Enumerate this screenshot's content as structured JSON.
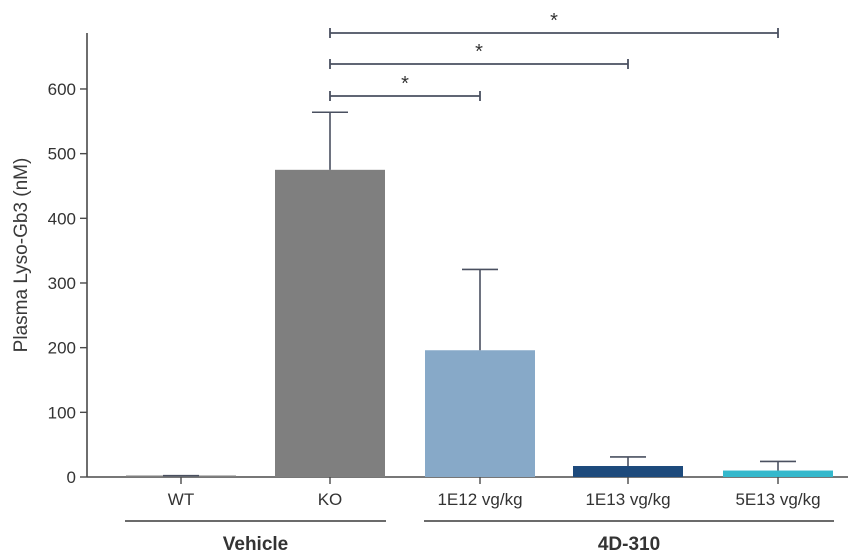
{
  "chart_data": {
    "type": "bar",
    "title": "",
    "xlabel": "",
    "ylabel": "Plasma Lyso-Gb3 (nM)",
    "ylim": [
      0,
      650
    ],
    "yticks": [
      0,
      100,
      200,
      300,
      400,
      500,
      600
    ],
    "categories": [
      "WT",
      "KO",
      "1E12 vg/kg",
      "1E13 vg/kg",
      "5E13 vg/kg"
    ],
    "values": [
      1,
      475,
      196,
      17,
      10
    ],
    "errors": [
      1,
      89,
      125,
      14,
      14
    ],
    "colors": [
      "#7f7f7f",
      "#7f7f7f",
      "#87a9c8",
      "#1d4a7c",
      "#35b8cc"
    ],
    "groups": [
      {
        "label": "Vehicle",
        "categories": [
          "WT",
          "KO"
        ]
      },
      {
        "label": "4D-310",
        "categories": [
          "1E12 vg/kg",
          "1E13 vg/kg",
          "5E13 vg/kg"
        ]
      }
    ],
    "significance": [
      {
        "from": "KO",
        "to": "1E12 vg/kg",
        "label": "*"
      },
      {
        "from": "KO",
        "to": "1E13 vg/kg",
        "label": "*"
      },
      {
        "from": "KO",
        "to": "5E13 vg/kg",
        "label": "*"
      }
    ],
    "grid": false,
    "legend": "none"
  }
}
